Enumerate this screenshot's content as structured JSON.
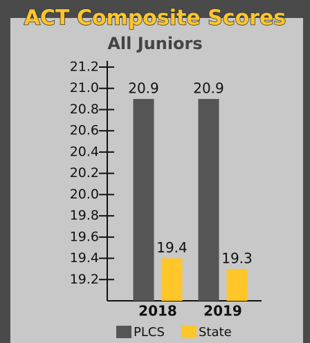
{
  "chart_data": {
    "type": "bar",
    "title": "ACT Composite Scores",
    "subtitle": "All Juniors",
    "categories": [
      "2018",
      "2019"
    ],
    "series": [
      {
        "name": "PLCS",
        "color": "#555555",
        "values": [
          20.9,
          20.9
        ]
      },
      {
        "name": "State",
        "color": "#ffc629",
        "values": [
          19.4,
          19.3
        ]
      }
    ],
    "ylim": [
      19.0,
      21.2
    ],
    "yticks": [
      19.2,
      19.4,
      19.6,
      19.8,
      {
        "value": 20,
        "label": "20.0"
      },
      20.2,
      20.4,
      20.6,
      20.8,
      {
        "value": 21,
        "label": "21.0"
      },
      21.2
    ],
    "legend": "bottom"
  }
}
